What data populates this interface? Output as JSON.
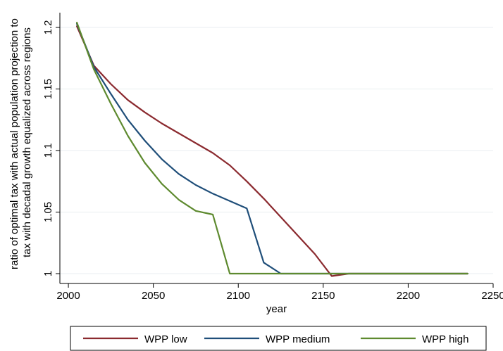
{
  "chart_data": {
    "type": "line",
    "xlabel": "year",
    "ylabel_lines": [
      "ratio of optimal tax with actual population projection to",
      "tax with decadal growth equalized across regions"
    ],
    "xlim": [
      1995,
      2250
    ],
    "ylim": [
      0.992,
      1.212
    ],
    "xticks": [
      2000,
      2050,
      2100,
      2150,
      2200,
      2250
    ],
    "yticks": [
      1,
      1.05,
      1.1,
      1.15,
      1.2
    ],
    "ytick_labels": [
      "1",
      "1.05",
      "1.1",
      "1.15",
      "1.2"
    ],
    "grid": "horizontal",
    "legend_position": "bottom",
    "series": [
      {
        "name": "WPP low",
        "color": "#8B2A2F",
        "x": [
          2005,
          2015,
          2025,
          2035,
          2045,
          2055,
          2065,
          2075,
          2085,
          2095,
          2105,
          2115,
          2125,
          2135,
          2145,
          2155,
          2165,
          2175,
          2185,
          2195,
          2205,
          2215,
          2225,
          2235
        ],
        "y": [
          1.201,
          1.169,
          1.154,
          1.141,
          1.131,
          1.122,
          1.114,
          1.106,
          1.098,
          1.088,
          1.075,
          1.061,
          1.046,
          1.031,
          1.016,
          0.998,
          1.0,
          1.0,
          1.0,
          1.0,
          1.0,
          1.0,
          1.0,
          1.0
        ]
      },
      {
        "name": "WPP medium",
        "color": "#1F4E79",
        "x": [
          2005,
          2015,
          2025,
          2035,
          2045,
          2055,
          2065,
          2075,
          2085,
          2095,
          2105,
          2115,
          2125,
          2135,
          2145,
          2155,
          2165,
          2175,
          2185,
          2195,
          2205,
          2215,
          2225,
          2235
        ],
        "y": [
          1.203,
          1.168,
          1.146,
          1.125,
          1.108,
          1.093,
          1.081,
          1.072,
          1.065,
          1.059,
          1.053,
          1.009,
          1.0,
          1.0,
          1.0,
          1.0,
          1.0,
          1.0,
          1.0,
          1.0,
          1.0,
          1.0,
          1.0,
          1.0
        ]
      },
      {
        "name": "WPP high",
        "color": "#5E8A2F",
        "x": [
          2005,
          2015,
          2025,
          2035,
          2045,
          2055,
          2065,
          2075,
          2085,
          2095,
          2105,
          2115,
          2125,
          2135,
          2145,
          2155,
          2165,
          2175,
          2185,
          2195,
          2205,
          2215,
          2225,
          2235
        ],
        "y": [
          1.204,
          1.166,
          1.138,
          1.112,
          1.09,
          1.073,
          1.06,
          1.051,
          1.048,
          1.0,
          1.0,
          1.0,
          1.0,
          1.0,
          1.0,
          1.0,
          1.0,
          1.0,
          1.0,
          1.0,
          1.0,
          1.0,
          1.0,
          1.0
        ]
      }
    ]
  }
}
